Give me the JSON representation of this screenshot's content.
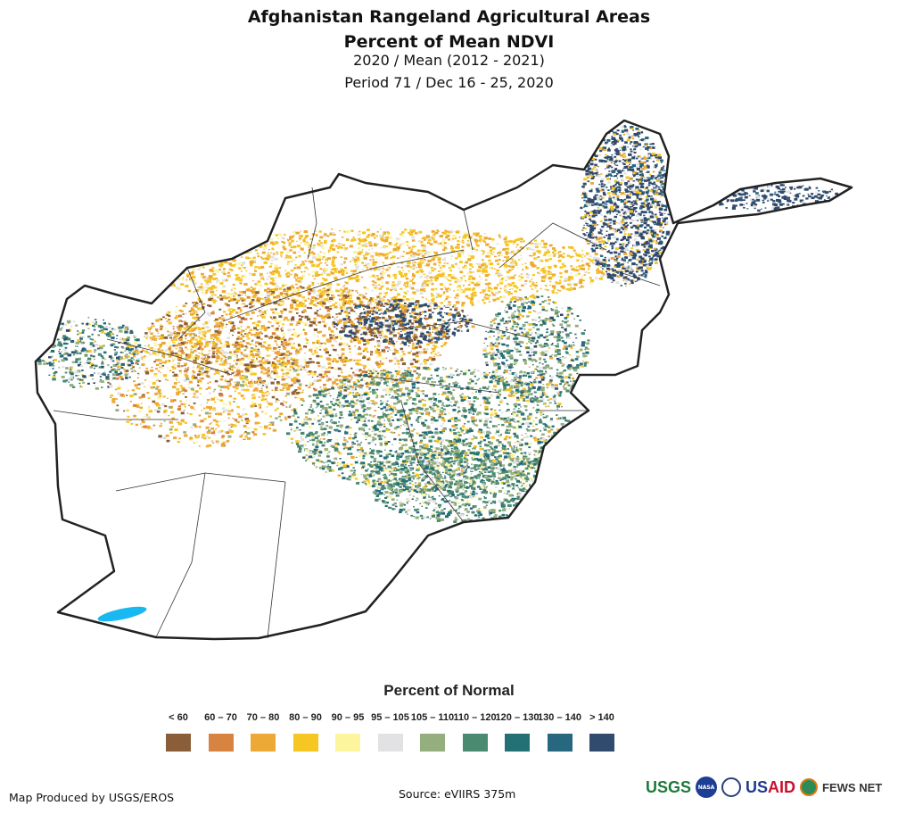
{
  "title": {
    "line1": "Afghanistan Rangeland Agricultural Areas",
    "line2": "Percent of Mean NDVI",
    "line3": "2020 / Mean (2012 - 2021)",
    "line4": "Period 71 / Dec 16 - 25, 2020"
  },
  "legend": {
    "title": "Percent of Normal",
    "items": [
      {
        "label": "< 60",
        "color": "#8b5e3a"
      },
      {
        "label": "60 – 70",
        "color": "#d78443"
      },
      {
        "label": "70 – 80",
        "color": "#eda935"
      },
      {
        "label": "80 – 90",
        "color": "#f6c623"
      },
      {
        "label": "90 – 95",
        "color": "#fdf49e"
      },
      {
        "label": "95 – 105",
        "color": "#e2e2e4"
      },
      {
        "label": "105 – 110",
        "color": "#94ae7e"
      },
      {
        "label": "110 – 120",
        "color": "#4a8a70"
      },
      {
        "label": "120 – 130",
        "color": "#237174"
      },
      {
        "label": "130 – 140",
        "color": "#276780"
      },
      {
        "label": "> 140",
        "color": "#304b6e"
      }
    ]
  },
  "water_color": "#1ab8f0",
  "footer": {
    "produced_by": "Map Produced by USGS/EROS",
    "source": "Source: eVIIRS 375m"
  },
  "logos": {
    "usgs": "USGS",
    "nasa": "NASA",
    "usaid_a": "US",
    "usaid_b": "AID",
    "fews": "FEWS NET"
  }
}
